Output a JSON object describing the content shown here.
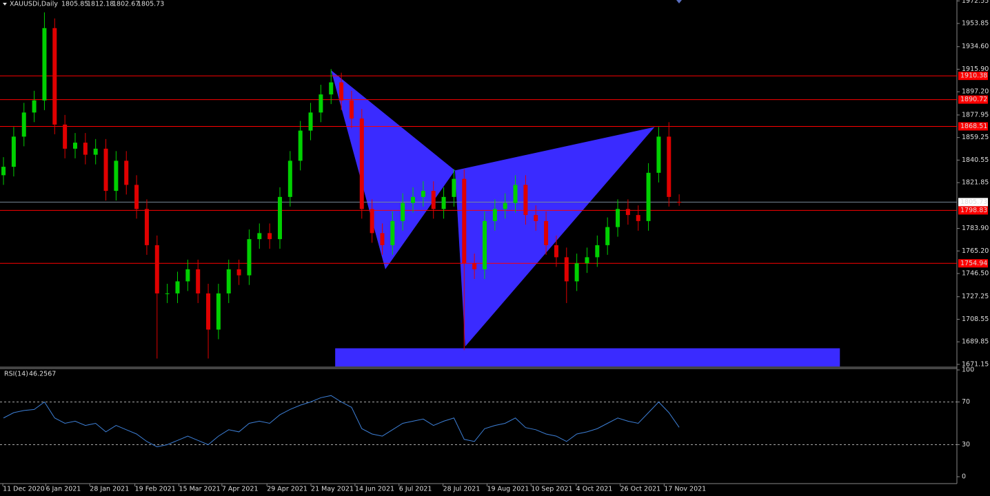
{
  "chart_data": {
    "type": "candlestick",
    "title": "XAUUSDi,Daily",
    "open": [
      1828,
      1835,
      1860,
      1880,
      1890,
      1950,
      1870,
      1850,
      1855,
      1845,
      1850,
      1815,
      1840,
      1820,
      1800,
      1770,
      1730,
      1730,
      1740,
      1750,
      1730,
      1700,
      1730,
      1750,
      1745,
      1775,
      1780,
      1775,
      1810,
      1840,
      1865,
      1880,
      1895,
      1905,
      1890,
      1875,
      1800,
      1780,
      1770,
      1790,
      1805,
      1810,
      1815,
      1800,
      1810,
      1825,
      1755,
      1750,
      1790,
      1800,
      1805,
      1820,
      1795,
      1790,
      1770,
      1760,
      1740,
      1755,
      1760,
      1770,
      1785,
      1800,
      1795,
      1790,
      1830,
      1860,
      1805.85
    ],
    "high": [
      1843,
      1868,
      1888,
      1898,
      1963,
      1958,
      1878,
      1863,
      1863,
      1858,
      1858,
      1848,
      1848,
      1828,
      1808,
      1778,
      1738,
      1748,
      1758,
      1758,
      1738,
      1738,
      1758,
      1758,
      1783,
      1788,
      1788,
      1818,
      1848,
      1873,
      1888,
      1903,
      1916,
      1913,
      1898,
      1883,
      1808,
      1788,
      1798,
      1813,
      1818,
      1823,
      1823,
      1818,
      1833,
      1833,
      1763,
      1798,
      1808,
      1813,
      1828,
      1828,
      1803,
      1798,
      1778,
      1768,
      1763,
      1768,
      1778,
      1793,
      1808,
      1808,
      1803,
      1838,
      1868,
      1872,
      1812.18
    ],
    "low": [
      1820,
      1827,
      1852,
      1872,
      1882,
      1862,
      1842,
      1842,
      1837,
      1837,
      1807,
      1807,
      1812,
      1792,
      1762,
      1676,
      1722,
      1722,
      1732,
      1722,
      1676,
      1692,
      1722,
      1737,
      1737,
      1767,
      1767,
      1767,
      1802,
      1832,
      1857,
      1872,
      1887,
      1882,
      1867,
      1792,
      1772,
      1762,
      1762,
      1782,
      1797,
      1802,
      1792,
      1792,
      1802,
      1683,
      1742,
      1742,
      1782,
      1792,
      1797,
      1787,
      1782,
      1762,
      1752,
      1722,
      1732,
      1747,
      1752,
      1762,
      1777,
      1787,
      1782,
      1782,
      1822,
      1802,
      1802.67
    ],
    "close": [
      1835,
      1860,
      1880,
      1890,
      1950,
      1870,
      1850,
      1855,
      1845,
      1850,
      1815,
      1840,
      1820,
      1800,
      1770,
      1730,
      1730,
      1740,
      1750,
      1730,
      1700,
      1730,
      1750,
      1745,
      1775,
      1780,
      1775,
      1810,
      1840,
      1865,
      1880,
      1895,
      1905,
      1890,
      1875,
      1800,
      1780,
      1770,
      1790,
      1805,
      1810,
      1815,
      1800,
      1810,
      1825,
      1755,
      1750,
      1790,
      1800,
      1805,
      1820,
      1795,
      1790,
      1770,
      1760,
      1740,
      1755,
      1760,
      1770,
      1785,
      1800,
      1795,
      1790,
      1830,
      1860,
      1810,
      1805.73
    ],
    "up_color": "#00d000",
    "down_color": "#e00000",
    "xlim": [
      -0.34,
      93.13
    ],
    "xticks": [
      {
        "value": -0.2,
        "label": "11 Dec 2020"
      },
      {
        "value": 4.0,
        "label": "6 Jan 2021"
      },
      {
        "value": 8.3,
        "label": "28 Jan 2021"
      },
      {
        "value": 12.7,
        "label": "19 Feb 2021"
      },
      {
        "value": 17.0,
        "label": "15 Mar 2021"
      },
      {
        "value": 21.2,
        "label": "7 Apr 2021"
      },
      {
        "value": 25.6,
        "label": "29 Apr 2021"
      },
      {
        "value": 29.9,
        "label": "21 May 2021"
      },
      {
        "value": 34.2,
        "label": "14 Jun 2021"
      },
      {
        "value": 38.5,
        "label": "6 Jul 2021"
      },
      {
        "value": 42.8,
        "label": "28 Jul 2021"
      },
      {
        "value": 47.1,
        "label": "19 Aug 2021"
      },
      {
        "value": 51.4,
        "label": "10 Sep 2021"
      },
      {
        "value": 55.8,
        "label": "4 Oct 2021"
      },
      {
        "value": 60.1,
        "label": "26 Oct 2021"
      },
      {
        "value": 64.4,
        "label": "17 Nov 2021"
      }
    ],
    "ylim": [
      1669.4,
      1973.3
    ],
    "yticks": [
      1972.55,
      1953.85,
      {
        "value": 1934.6,
        "label": "1934.60"
      },
      {
        "value": 1915.9,
        "label": "1915.90"
      },
      {
        "value": 1897.2,
        "label": "1897.20"
      },
      1877.95,
      1859.25,
      1840.55,
      1821.85,
      {
        "value": 1783.9,
        "label": "1783.90"
      },
      {
        "value": 1765.2,
        "label": "1765.20"
      },
      {
        "value": 1746.5,
        "label": "1746.50"
      },
      1727.25,
      1708.55,
      1689.85,
      1671.15
    ],
    "hlines": [
      1910.38,
      1890.72,
      1868.51,
      1798.83,
      1754.94
    ],
    "hline_color": "#ff0000",
    "pattern": {
      "x": [
        32,
        37.3,
        44.1,
        45.1,
        63.6
      ],
      "y": [
        1915,
        1750,
        1832,
        1686,
        1868
      ],
      "color": "#3a2bff"
    },
    "zone": {
      "x": [
        32.4,
        81.7
      ],
      "y": [
        1669.4,
        1684.5
      ],
      "color": "#3a2bff"
    },
    "rsi": {
      "title": "RSI(14)",
      "color": "#3d7fd6",
      "ylim": [
        0,
        100
      ],
      "yticks": [
        0,
        30,
        70,
        100
      ],
      "levels": [
        30,
        70
      ],
      "values": [
        55,
        60,
        62,
        63,
        70,
        55,
        50,
        52,
        48,
        50,
        42,
        48,
        44,
        40,
        33,
        28,
        30,
        34,
        38,
        34,
        30,
        38,
        44,
        42,
        50,
        52,
        50,
        58,
        63,
        67,
        70,
        74,
        76,
        70,
        65,
        45,
        40,
        38,
        44,
        50,
        52,
        54,
        48,
        52,
        55,
        35,
        33,
        45,
        48,
        50,
        55,
        46,
        44,
        40,
        38,
        33,
        40,
        42,
        45,
        50,
        55,
        52,
        50,
        60,
        70,
        60,
        46.2567
      ]
    }
  }
}
